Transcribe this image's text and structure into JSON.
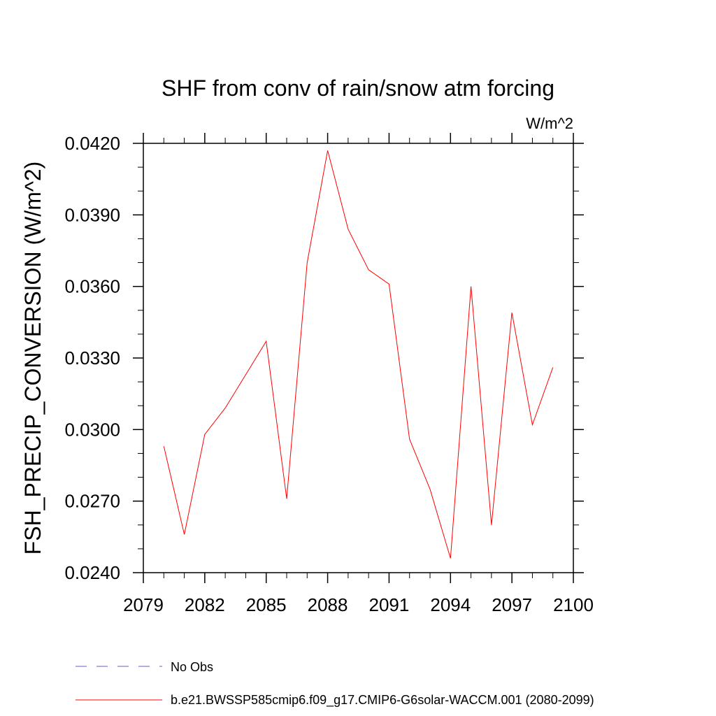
{
  "chart_data": {
    "type": "line",
    "title": "SHF from conv of rain/snow atm forcing",
    "units_label": "W/m^2",
    "xlabel": "",
    "ylabel": "FSH_PRECIP_CONVERSION  (W/m^2)",
    "xlim": [
      2079,
      2100
    ],
    "ylim": [
      0.024,
      0.042
    ],
    "xticks": [
      2079,
      2082,
      2085,
      2088,
      2091,
      2094,
      2097,
      2100
    ],
    "xtick_labels": [
      "2079",
      "2082",
      "2085",
      "2088",
      "2091",
      "2094",
      "2097",
      "2100"
    ],
    "yticks": [
      0.024,
      0.027,
      0.03,
      0.033,
      0.036,
      0.039,
      0.042
    ],
    "ytick_labels": [
      "0.0240",
      "0.0270",
      "0.0300",
      "0.0330",
      "0.0360",
      "0.0390",
      "0.0420"
    ],
    "grid": false,
    "series": [
      {
        "name": "b.e21.BWSSP585cmip6.f09_g17.CMIP6-G6solar-WACCM.001 (2080-2099)",
        "color": "#ff0000",
        "x": [
          2080,
          2081,
          2082,
          2083,
          2084,
          2085,
          2086,
          2087,
          2088,
          2089,
          2090,
          2091,
          2092,
          2093,
          2094,
          2095,
          2096,
          2097,
          2098,
          2099
        ],
        "y": [
          0.0293,
          0.0256,
          0.0298,
          0.0309,
          0.0323,
          0.0337,
          0.0271,
          0.037,
          0.0417,
          0.0384,
          0.0367,
          0.0361,
          0.0296,
          0.0275,
          0.0246,
          0.036,
          0.026,
          0.0349,
          0.0302,
          0.0326
        ]
      }
    ],
    "legend": {
      "position": "bottom",
      "entries": [
        {
          "label": "No Obs",
          "color": "#6a5acd",
          "style": "dashed"
        },
        {
          "label": "b.e21.BWSSP585cmip6.f09_g17.CMIP6-G6solar-WACCM.001 (2080-2099)",
          "color": "#ff0000",
          "style": "solid"
        }
      ]
    }
  }
}
